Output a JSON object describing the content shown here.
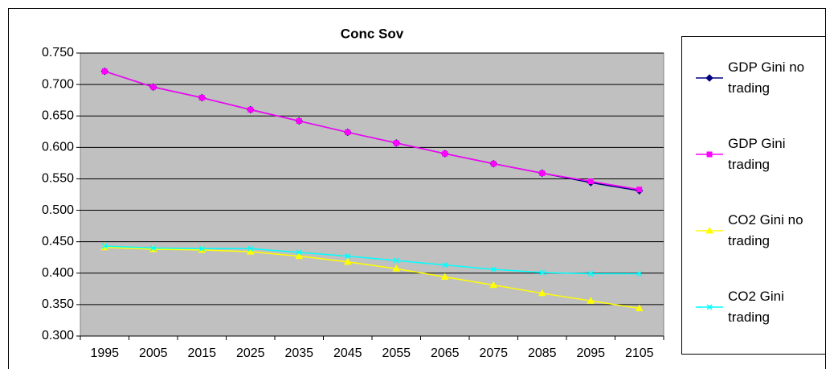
{
  "chart_data": {
    "type": "line",
    "title": "Conc Sov",
    "categories": [
      "1995",
      "2005",
      "2015",
      "2025",
      "2035",
      "2045",
      "2055",
      "2065",
      "2075",
      "2085",
      "2095",
      "2105"
    ],
    "series": [
      {
        "name": "GDP Gini no trading",
        "color": "#000080",
        "marker": "diamond",
        "values": [
          0.721,
          0.696,
          0.679,
          0.66,
          0.642,
          0.624,
          0.607,
          0.59,
          0.574,
          0.559,
          0.544,
          0.531
        ]
      },
      {
        "name": "GDP Gini trading",
        "color": "#ff00ff",
        "marker": "square",
        "values": [
          0.721,
          0.696,
          0.679,
          0.66,
          0.642,
          0.624,
          0.607,
          0.59,
          0.574,
          0.559,
          0.546,
          0.533
        ]
      },
      {
        "name": "CO2 Gini no trading",
        "color": "#ffff00",
        "marker": "triangle",
        "values": [
          0.441,
          0.438,
          0.437,
          0.434,
          0.427,
          0.418,
          0.407,
          0.394,
          0.381,
          0.368,
          0.356,
          0.344
        ]
      },
      {
        "name": "CO2 Gini trading",
        "color": "#00ffff",
        "marker": "x",
        "values": [
          0.443,
          0.44,
          0.439,
          0.439,
          0.433,
          0.427,
          0.42,
          0.413,
          0.406,
          0.401,
          0.399,
          0.399
        ]
      }
    ],
    "ylim": [
      0.3,
      0.75
    ],
    "yticks": [
      {
        "value": 0.3,
        "label": "0.300"
      },
      {
        "value": 0.35,
        "label": "0.350"
      },
      {
        "value": 0.4,
        "label": "0.400"
      },
      {
        "value": 0.45,
        "label": "0.450"
      },
      {
        "value": 0.5,
        "label": "0.500"
      },
      {
        "value": 0.55,
        "label": "0.550"
      },
      {
        "value": 0.6,
        "label": "0.600"
      },
      {
        "value": 0.65,
        "label": "0.650"
      },
      {
        "value": 0.7,
        "label": "0.700"
      },
      {
        "value": 0.75,
        "label": "0.750"
      }
    ],
    "grid": true,
    "legend": "right"
  }
}
